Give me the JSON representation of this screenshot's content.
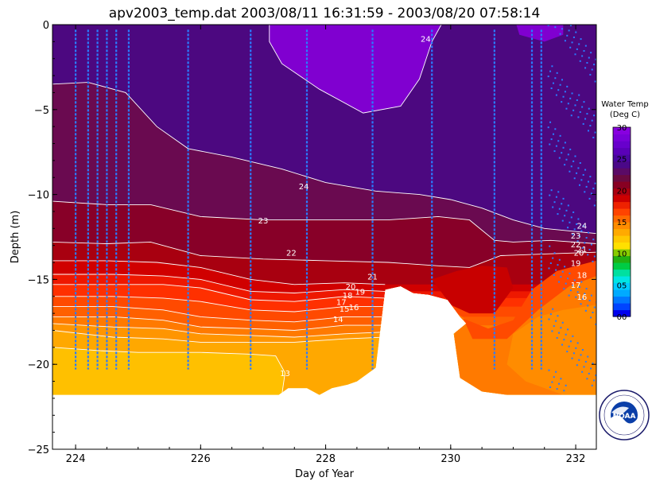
{
  "title": "apv2003_temp.dat  2003/08/11 16:31:59 - 2003/08/20 07:58:14",
  "chart_data": {
    "type": "heatmap",
    "title": "apv2003_temp.dat  2003/08/11 16:31:59 - 2003/08/20 07:58:14",
    "xlabel": "Day of Year",
    "ylabel": "Depth (m)",
    "xlim": [
      223.63,
      232.33
    ],
    "ylim": [
      -25,
      0
    ],
    "x_ticks": [
      224,
      226,
      228,
      230,
      232
    ],
    "x_tick_labels": [
      "224",
      "226",
      "228",
      "230",
      "232"
    ],
    "y_ticks": [
      0,
      -5,
      -10,
      -15,
      -20,
      -25
    ],
    "y_tick_labels": [
      "0",
      "−5",
      "−10",
      "−15",
      "−20",
      "−25"
    ],
    "grid": false,
    "colorbar": {
      "title": [
        "Water Temp",
        "(Deg C)"
      ],
      "range": [
        0,
        30
      ],
      "tick_values": [
        30,
        25,
        20,
        15,
        10,
        5,
        0
      ],
      "tick_labels": [
        "30",
        "25",
        "20",
        "15",
        "10",
        "05",
        "00"
      ],
      "colors": [
        "#0000ee",
        "#0044ff",
        "#0077ff",
        "#00aaff",
        "#00ccff",
        "#00e5e5",
        "#00e0a0",
        "#00cc44",
        "#22b011",
        "#88cc00",
        "#ffe000",
        "#ffc800",
        "#ffaa00",
        "#ff8c00",
        "#ff6a00",
        "#ff4400",
        "#ee2200",
        "#cc0000",
        "#aa0010",
        "#880022",
        "#6a0a40",
        "#5a0a66",
        "#4a0888",
        "#4a06a0",
        "#5a00b8",
        "#6800cc",
        "#7800d8",
        "#8800e0"
      ]
    },
    "depth_bottom_profile": [
      {
        "day": 223.63,
        "depth": -21.8
      },
      {
        "day": 227.25,
        "depth": -21.8
      },
      {
        "day": 227.4,
        "depth": -21.4
      },
      {
        "day": 227.7,
        "depth": -21.4
      },
      {
        "day": 227.9,
        "depth": -21.8
      },
      {
        "day": 228.1,
        "depth": -21.4
      },
      {
        "day": 228.35,
        "depth": -21.2
      },
      {
        "day": 228.5,
        "depth": -21.0
      },
      {
        "day": 228.8,
        "depth": -20.2
      },
      {
        "day": 228.95,
        "depth": -15.6
      },
      {
        "day": 229.2,
        "depth": -15.4
      },
      {
        "day": 229.4,
        "depth": -15.8
      },
      {
        "day": 229.65,
        "depth": -15.9
      },
      {
        "day": 229.95,
        "depth": -16.2
      },
      {
        "day": 230.15,
        "depth": -17.2
      },
      {
        "day": 230.25,
        "depth": -17.6
      },
      {
        "day": 230.05,
        "depth": -18.2
      },
      {
        "day": 230.15,
        "depth": -20.8
      },
      {
        "day": 230.5,
        "depth": -21.6
      },
      {
        "day": 230.9,
        "depth": -21.8
      },
      {
        "day": 232.33,
        "depth": -21.8
      }
    ],
    "isotherms": [
      {
        "temp": 24,
        "label": "24",
        "points": [
          [
            223.63,
            -3.5
          ],
          [
            224.2,
            -3.4
          ],
          [
            224.8,
            -4.0
          ],
          [
            225.3,
            -6.0
          ],
          [
            225.8,
            -7.3
          ],
          [
            226.5,
            -7.8
          ],
          [
            227.3,
            -8.5
          ],
          [
            228.0,
            -9.3
          ],
          [
            228.8,
            -9.8
          ],
          [
            229.5,
            -10.0
          ],
          [
            230.0,
            -10.3
          ],
          [
            230.5,
            -10.8
          ],
          [
            231.0,
            -11.5
          ],
          [
            231.5,
            -12.0
          ],
          [
            232.33,
            -12.3
          ]
        ]
      },
      {
        "temp": 23,
        "label": "23",
        "points": [
          [
            223.63,
            -10.4
          ],
          [
            224.5,
            -10.6
          ],
          [
            225.2,
            -10.6
          ],
          [
            226.0,
            -11.3
          ],
          [
            227.0,
            -11.5
          ],
          [
            228.0,
            -11.5
          ],
          [
            229.0,
            -11.5
          ],
          [
            229.8,
            -11.3
          ],
          [
            230.3,
            -11.5
          ],
          [
            230.7,
            -12.7
          ],
          [
            231.0,
            -12.8
          ],
          [
            231.6,
            -12.7
          ],
          [
            232.33,
            -12.9
          ]
        ]
      },
      {
        "temp": 22,
        "label": "22",
        "points": [
          [
            223.63,
            -12.8
          ],
          [
            224.5,
            -12.9
          ],
          [
            225.2,
            -12.8
          ],
          [
            226.0,
            -13.6
          ],
          [
            227.0,
            -13.8
          ],
          [
            228.0,
            -13.9
          ],
          [
            229.0,
            -14.0
          ],
          [
            229.8,
            -14.2
          ],
          [
            230.3,
            -14.3
          ],
          [
            230.8,
            -13.6
          ],
          [
            231.5,
            -13.5
          ],
          [
            232.33,
            -13.4
          ]
        ]
      },
      {
        "temp": 21,
        "label": "21",
        "points": [
          [
            223.63,
            -13.9
          ],
          [
            224.5,
            -13.9
          ],
          [
            225.3,
            -14.0
          ],
          [
            226.0,
            -14.3
          ],
          [
            226.8,
            -15.0
          ],
          [
            227.5,
            -15.3
          ],
          [
            228.3,
            -15.2
          ],
          [
            228.95,
            -15.3
          ]
        ]
      },
      {
        "temp": 20,
        "label": "20",
        "points": [
          [
            223.63,
            -14.7
          ],
          [
            224.6,
            -14.7
          ],
          [
            225.4,
            -14.8
          ],
          [
            226.0,
            -15.0
          ],
          [
            226.8,
            -15.7
          ],
          [
            227.5,
            -15.8
          ],
          [
            228.3,
            -15.6
          ],
          [
            228.95,
            -15.7
          ]
        ]
      },
      {
        "temp": 19,
        "label": "19",
        "points": [
          [
            223.63,
            -15.3
          ],
          [
            224.6,
            -15.3
          ],
          [
            225.4,
            -15.3
          ],
          [
            226.0,
            -15.5
          ],
          [
            226.8,
            -16.2
          ],
          [
            227.5,
            -16.3
          ],
          [
            228.3,
            -16.0
          ],
          [
            228.95,
            -16.1
          ]
        ]
      },
      {
        "temp": 18,
        "label": "18",
        "points": [
          [
            223.63,
            -16.0
          ],
          [
            224.6,
            -16.0
          ],
          [
            225.4,
            -16.1
          ],
          [
            226.0,
            -16.3
          ],
          [
            226.8,
            -16.8
          ],
          [
            227.5,
            -16.9
          ],
          [
            228.3,
            -16.6
          ],
          [
            228.95,
            -16.6
          ]
        ]
      },
      {
        "temp": 17,
        "label": "17",
        "points": [
          [
            223.63,
            -16.6
          ],
          [
            224.6,
            -16.6
          ],
          [
            225.4,
            -16.8
          ],
          [
            226.0,
            -17.2
          ],
          [
            226.8,
            -17.4
          ],
          [
            227.5,
            -17.5
          ],
          [
            228.3,
            -17.2
          ],
          [
            228.95,
            -17.2
          ]
        ]
      },
      {
        "temp": 16,
        "label": "16",
        "points": [
          [
            223.63,
            -17.2
          ],
          [
            224.6,
            -17.2
          ],
          [
            225.4,
            -17.4
          ],
          [
            226.0,
            -17.8
          ],
          [
            226.8,
            -17.9
          ],
          [
            227.5,
            -18.0
          ],
          [
            228.3,
            -17.7
          ],
          [
            228.95,
            -17.7
          ]
        ]
      },
      {
        "temp": 15,
        "label": "15",
        "points": [
          [
            223.63,
            -17.6
          ],
          [
            224.6,
            -17.8
          ],
          [
            225.4,
            -17.9
          ],
          [
            226.0,
            -18.2
          ],
          [
            226.8,
            -18.3
          ],
          [
            227.5,
            -18.4
          ],
          [
            228.3,
            -18.2
          ],
          [
            228.95,
            -18.1
          ]
        ]
      },
      {
        "temp": 14,
        "label": "14",
        "points": [
          [
            223.63,
            -18.0
          ],
          [
            224.6,
            -18.4
          ],
          [
            225.4,
            -18.5
          ],
          [
            226.0,
            -18.7
          ],
          [
            226.8,
            -18.7
          ],
          [
            227.5,
            -18.7
          ],
          [
            228.3,
            -18.5
          ],
          [
            228.95,
            -18.4
          ]
        ]
      },
      {
        "temp": 13,
        "label": "13",
        "points": [
          [
            223.63,
            -19.0
          ],
          [
            224.4,
            -19.2
          ],
          [
            225.0,
            -19.3
          ],
          [
            226.0,
            -19.3
          ],
          [
            226.8,
            -19.4
          ],
          [
            227.2,
            -19.5
          ],
          [
            227.35,
            -20.5
          ],
          [
            227.3,
            -21.8
          ]
        ]
      }
    ],
    "contour_labels": [
      {
        "text": "24",
        "day": 229.6,
        "depth": -1.0
      },
      {
        "text": "24",
        "day": 227.65,
        "depth": -9.7
      },
      {
        "text": "23",
        "day": 227.0,
        "depth": -11.7
      },
      {
        "text": "22",
        "day": 227.45,
        "depth": -13.6
      },
      {
        "text": "21",
        "day": 228.75,
        "depth": -15.0
      },
      {
        "text": "20",
        "day": 228.4,
        "depth": -15.6
      },
      {
        "text": "19",
        "day": 228.55,
        "depth": -15.9
      },
      {
        "text": "18",
        "day": 228.35,
        "depth": -16.1
      },
      {
        "text": "17",
        "day": 228.25,
        "depth": -16.5
      },
      {
        "text": "16",
        "day": 228.45,
        "depth": -16.8
      },
      {
        "text": "15",
        "day": 228.3,
        "depth": -16.9
      },
      {
        "text": "14",
        "day": 228.2,
        "depth": -17.5
      },
      {
        "text": "13",
        "day": 227.35,
        "depth": -20.7
      },
      {
        "text": "24",
        "day": 232.1,
        "depth": -12.0
      },
      {
        "text": "23",
        "day": 232.0,
        "depth": -12.6
      },
      {
        "text": "22",
        "day": 232.0,
        "depth": -13.1
      },
      {
        "text": "21",
        "day": 232.1,
        "depth": -13.4
      },
      {
        "text": "20",
        "day": 232.05,
        "depth": -13.6
      },
      {
        "text": "19",
        "day": 232.0,
        "depth": -14.2
      },
      {
        "text": "18",
        "day": 232.1,
        "depth": -14.9
      },
      {
        "text": "17",
        "day": 232.0,
        "depth": -15.5
      },
      {
        "text": "16",
        "day": 232.1,
        "depth": -16.2
      }
    ],
    "measurement_casts": [
      224.0,
      224.2,
      224.35,
      224.5,
      224.65,
      224.85,
      225.8,
      226.8,
      227.7,
      228.75,
      229.7,
      230.7,
      231.3,
      231.45
    ],
    "logo_text": "NOAA"
  },
  "colors": {
    "warm_top": "#5a00b8",
    "surface_max": "#8000d0",
    "mid": "#4a0888",
    "thermocline_top": "#880022",
    "deep_warm": "#ff8c00",
    "deep_cool": "#ffc000",
    "cast_blue": "#2a7cff",
    "contour": "#ffffff"
  }
}
